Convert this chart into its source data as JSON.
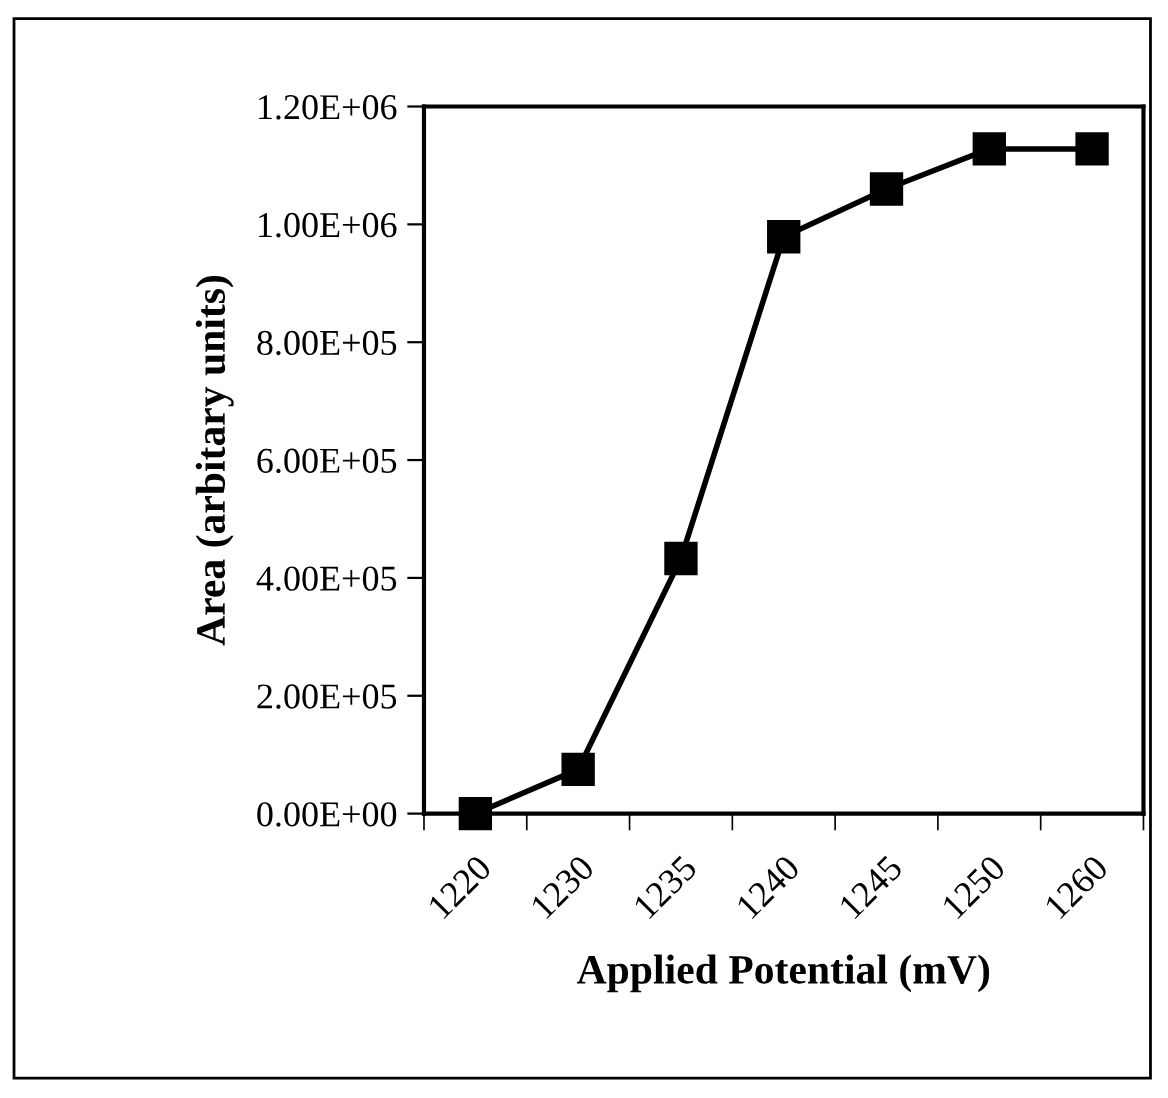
{
  "chart_data": {
    "type": "line",
    "xlabel": "Applied Potential (mV)",
    "ylabel": "Area (arbitary units)",
    "categories": [
      "1220",
      "1230",
      "1235",
      "1240",
      "1245",
      "1250",
      "1260"
    ],
    "series": [
      {
        "color": "#000000",
        "values": [
          0,
          75000,
          433000,
          979000,
          1060000,
          1128000,
          1128000
        ]
      }
    ],
    "ylim": [
      0,
      1200000
    ],
    "yticks": [
      {
        "value": 0,
        "label": "0.00E+00"
      },
      {
        "value": 200000,
        "label": "2.00E+05"
      },
      {
        "value": 400000,
        "label": "4.00E+05"
      },
      {
        "value": 600000,
        "label": "6.00E+05"
      },
      {
        "value": 800000,
        "label": "8.00E+05"
      },
      {
        "value": 1000000,
        "label": "1.00E+06"
      },
      {
        "value": 1200000,
        "label": "1.20E+06"
      }
    ],
    "marker": "square",
    "line_style": "solid",
    "grid": false,
    "legend": false
  }
}
